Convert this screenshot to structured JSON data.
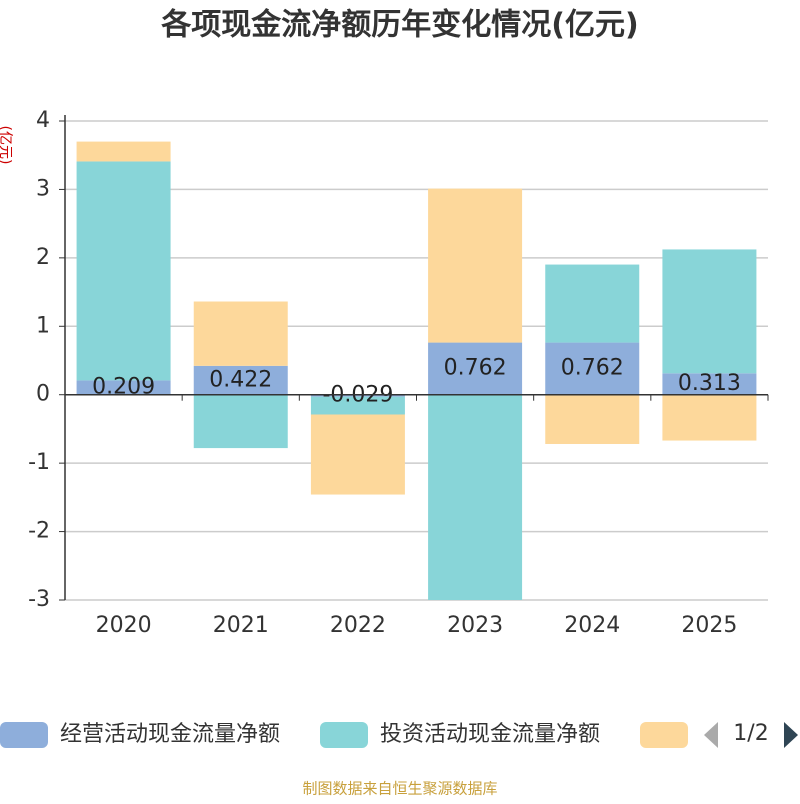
{
  "chart_data": {
    "type": "bar",
    "stacked": true,
    "title": "各项现金流净额历年变化情况(亿元)",
    "y_label": "(亿元)",
    "categories": [
      "2020",
      "2021",
      "2022",
      "2023",
      "2024",
      "2025"
    ],
    "series": [
      {
        "name": "经营活动现金流量净额",
        "color": "#8eaedb",
        "values": [
          0.209,
          0.422,
          -0.029,
          0.762,
          0.762,
          0.313
        ],
        "show_labels": true
      },
      {
        "name": "投资活动现金流量净额",
        "color": "#88d5d8",
        "values": [
          3.2,
          -0.78,
          -0.26,
          -3.0,
          1.14,
          1.81
        ]
      },
      {
        "color": "#fdd89b",
        "values": [
          0.29,
          0.94,
          -1.17,
          2.25,
          -0.72,
          -0.67
        ]
      }
    ],
    "ylim": [
      -3,
      4
    ],
    "yticks": [
      -3,
      -2,
      -1,
      0,
      1,
      2,
      3,
      4
    ],
    "grid": true,
    "legend_page": "1/2",
    "source": "制图数据来自恒生聚源数据库"
  }
}
